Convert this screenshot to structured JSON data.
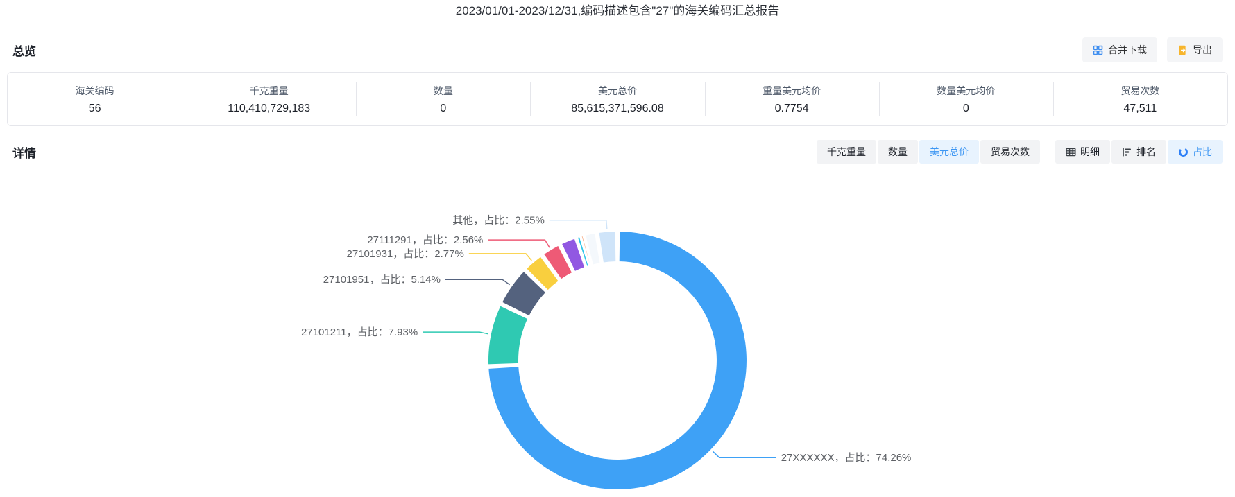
{
  "title": "2023/01/01-2023/12/31,编码描述包含\"27\"的海关编码汇总报告",
  "overview": {
    "heading": "总览",
    "merge_download_label": "合并下载",
    "export_label": "导出",
    "stats": [
      {
        "label": "海关编码",
        "value": "56"
      },
      {
        "label": "千克重量",
        "value": "110,410,729,183"
      },
      {
        "label": "数量",
        "value": "0"
      },
      {
        "label": "美元总价",
        "value": "85,615,371,596.08"
      },
      {
        "label": "重量美元均价",
        "value": "0.7754"
      },
      {
        "label": "数量美元均价",
        "value": "0"
      },
      {
        "label": "贸易次数",
        "value": "47,511"
      }
    ]
  },
  "detail": {
    "heading": "详情",
    "metric_tabs": [
      {
        "label": "千克重量",
        "active": false
      },
      {
        "label": "数量",
        "active": false
      },
      {
        "label": "美元总价",
        "active": true
      },
      {
        "label": "贸易次数",
        "active": false
      }
    ],
    "view_tabs": [
      {
        "label": "明细",
        "icon": "table-icon",
        "active": false
      },
      {
        "label": "排名",
        "icon": "ranking-icon",
        "active": false
      },
      {
        "label": "占比",
        "icon": "donut-icon",
        "active": true
      }
    ]
  },
  "colors": {
    "accent": "#3c96f3",
    "tab_active_bg": "#e8f3fe",
    "button_bg": "#f2f3f5",
    "merge_icon": "#3e8ef0",
    "export_icon": "#f7b52c",
    "dark_icon": "#3a3f45",
    "label_text": "#5e6166"
  },
  "chart_data": {
    "type": "pie",
    "subtype": "donut",
    "label_format": "{name}，占比：{percent}%",
    "start_angle_deg": 0,
    "direction": "clockwise",
    "inner_radius_ratio": 0.76,
    "segments": [
      {
        "name": "27XXXXXX",
        "percent": 74.26,
        "color": "#3ea1f6",
        "label_visible": true
      },
      {
        "name": "27101211",
        "percent": 7.93,
        "color": "#2fc9b2",
        "label_visible": true
      },
      {
        "name": "27101951",
        "percent": 5.14,
        "color": "#54627e",
        "label_visible": true
      },
      {
        "name": "27101931",
        "percent": 2.77,
        "color": "#f9cf3e",
        "label_visible": true
      },
      {
        "name": "27111291",
        "percent": 2.56,
        "color": "#ee5a76",
        "label_visible": true
      },
      {
        "name": "",
        "percent": 2.2,
        "color": "#9158e2",
        "label_visible": false
      },
      {
        "name": "",
        "percent": 0.55,
        "color": "#2bc4e8",
        "label_visible": false
      },
      {
        "name": "",
        "percent": 0.35,
        "color": "#f59b6b",
        "label_visible": false
      },
      {
        "name": "",
        "percent": 1.69,
        "color": "#f4f8fc",
        "label_visible": false
      },
      {
        "name": "其他",
        "percent": 2.55,
        "color": "#cfe4f9",
        "label_visible": true
      }
    ]
  }
}
